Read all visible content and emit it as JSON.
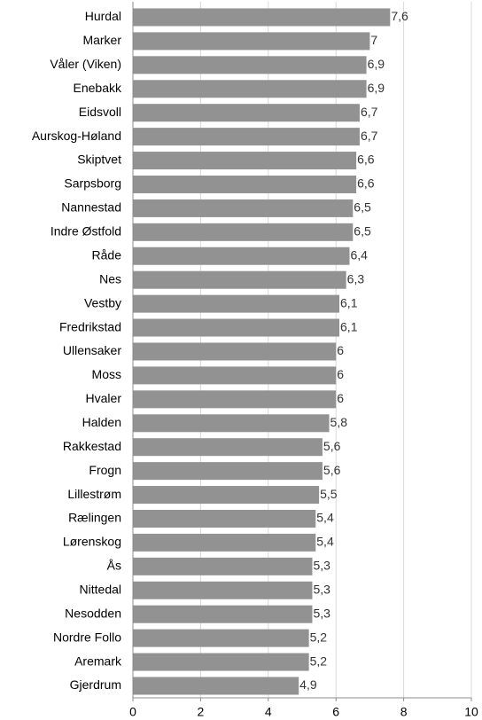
{
  "chart_data": {
    "type": "bar",
    "orientation": "horizontal",
    "categories": [
      "Hurdal",
      "Marker",
      "Våler (Viken)",
      "Enebakk",
      "Eidsvoll",
      "Aurskog-Høland",
      "Skiptvet",
      "Sarpsborg",
      "Nannestad",
      "Indre Østfold",
      "Råde",
      "Nes",
      "Vestby",
      "Fredrikstad",
      "Ullensaker",
      "Moss",
      "Hvaler",
      "Halden",
      "Rakkestad",
      "Frogn",
      "Lillestrøm",
      "Rælingen",
      "Lørenskog",
      "Ås",
      "Nittedal",
      "Nesodden",
      "Nordre Follo",
      "Aremark",
      "Gjerdrum"
    ],
    "values": [
      7.6,
      7,
      6.9,
      6.9,
      6.7,
      6.7,
      6.6,
      6.6,
      6.5,
      6.5,
      6.4,
      6.3,
      6.1,
      6.1,
      6,
      6,
      6,
      5.8,
      5.6,
      5.6,
      5.5,
      5.4,
      5.4,
      5.3,
      5.3,
      5.3,
      5.2,
      5.2,
      4.9
    ],
    "value_labels": [
      "7,6",
      "7",
      "6,9",
      "6,9",
      "6,7",
      "6,7",
      "6,6",
      "6,6",
      "6,5",
      "6,5",
      "6,4",
      "6,3",
      "6,1",
      "6,1",
      "6",
      "6",
      "6",
      "5,8",
      "5,6",
      "5,6",
      "5,5",
      "5,4",
      "5,4",
      "5,3",
      "5,3",
      "5,3",
      "5,2",
      "5,2",
      "4,9"
    ],
    "x_ticks": [
      0,
      2,
      4,
      6,
      8,
      10
    ],
    "x_tick_labels": [
      "0",
      "2",
      "4",
      "6",
      "8",
      "10"
    ],
    "xlim": [
      0,
      10
    ],
    "title": "",
    "xlabel": "",
    "ylabel": "",
    "grid": "vertical",
    "legend": "none",
    "colors": {
      "bar": "#929292",
      "grid": "#d9d9d9",
      "axis": "#8c8c8c"
    }
  }
}
